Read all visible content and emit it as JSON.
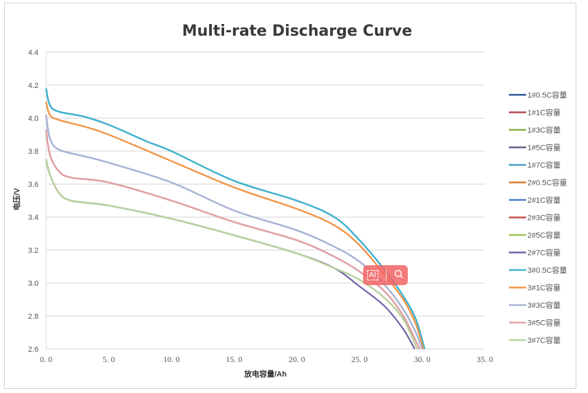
{
  "chart_data": {
    "type": "line",
    "title": "Multi-rate Discharge Curve",
    "xlabel": "放电容量/Ah",
    "ylabel": "电压/V",
    "xlim": [
      0,
      35
    ],
    "ylim": [
      2.6,
      4.4
    ],
    "xticks": [
      "0.0",
      "5.0",
      "10.0",
      "15.0",
      "20.0",
      "25.0",
      "30.0",
      "35.0"
    ],
    "yticks": [
      "2.6",
      "2.8",
      "3.0",
      "3.2",
      "3.4",
      "3.6",
      "3.8",
      "4.0",
      "4.2",
      "4.4"
    ],
    "grid": "horizontal",
    "legend": "right",
    "series": [
      {
        "name": "1#0.5C容量",
        "color": "#2f5597",
        "x": [
          0,
          0.3,
          1,
          3,
          5,
          8,
          10,
          15,
          20,
          23,
          25,
          27,
          28.5,
          29.5,
          30.2
        ],
        "y": [
          4.18,
          4.08,
          4.04,
          4.01,
          3.96,
          3.86,
          3.8,
          3.62,
          3.5,
          3.4,
          3.26,
          3.08,
          2.92,
          2.78,
          2.6
        ]
      },
      {
        "name": "1#1C容量",
        "color": "#b0474f",
        "x": [
          0,
          0.3,
          1,
          2,
          5,
          10,
          15,
          20,
          23,
          25,
          27,
          28.5,
          29.8
        ],
        "y": [
          3.93,
          3.78,
          3.68,
          3.64,
          3.61,
          3.5,
          3.37,
          3.26,
          3.16,
          3.07,
          2.95,
          2.8,
          2.6
        ]
      },
      {
        "name": "1#3C容量",
        "color": "#8cad46",
        "x": [
          0,
          0.3,
          1,
          2,
          5,
          10,
          15,
          20,
          23,
          25,
          27,
          28.5,
          29.6
        ],
        "y": [
          3.75,
          3.66,
          3.55,
          3.5,
          3.47,
          3.39,
          3.29,
          3.18,
          3.09,
          3.02,
          2.91,
          2.78,
          2.6
        ]
      },
      {
        "name": "1#5C容量",
        "color": "#6a5a8a",
        "x": [
          0,
          0.3,
          1,
          3,
          5,
          10,
          15,
          20,
          23,
          25,
          27,
          28.5,
          29.5,
          30
        ],
        "y": [
          4.02,
          3.88,
          3.81,
          3.77,
          3.73,
          3.61,
          3.44,
          3.32,
          3.22,
          3.13,
          2.99,
          2.84,
          2.7,
          2.6
        ]
      },
      {
        "name": "1#7C容量",
        "color": "#4a9ec4",
        "x": [
          0,
          0.3,
          1,
          3,
          5,
          8,
          10,
          15,
          20,
          23,
          25,
          27,
          28.5,
          29.5,
          30.2
        ],
        "y": [
          4.18,
          4.08,
          4.04,
          4.01,
          3.96,
          3.86,
          3.8,
          3.62,
          3.5,
          3.4,
          3.26,
          3.08,
          2.92,
          2.78,
          2.6
        ]
      },
      {
        "name": "2#0.5C容量",
        "color": "#e07b30",
        "x": [
          0,
          0.3,
          1,
          3,
          5,
          10,
          15,
          20,
          23,
          25,
          27,
          28.5,
          29.5,
          30.1
        ],
        "y": [
          4.1,
          4.02,
          3.99,
          3.95,
          3.9,
          3.74,
          3.58,
          3.45,
          3.35,
          3.23,
          3.05,
          2.9,
          2.75,
          2.6
        ]
      },
      {
        "name": "2#1C容量",
        "color": "#4a7fc8",
        "x": [
          0,
          0.3,
          1,
          3,
          5,
          8,
          10,
          15,
          20,
          23,
          25,
          27,
          28.5,
          29.5,
          30.2
        ],
        "y": [
          4.18,
          4.08,
          4.04,
          4.01,
          3.96,
          3.86,
          3.8,
          3.62,
          3.5,
          3.4,
          3.26,
          3.08,
          2.92,
          2.78,
          2.6
        ]
      },
      {
        "name": "2#3C容量",
        "color": "#c8504f",
        "x": [
          0,
          0.3,
          1,
          2,
          5,
          10,
          15,
          20,
          23,
          25,
          27,
          28.5,
          29.8
        ],
        "y": [
          3.93,
          3.78,
          3.68,
          3.64,
          3.61,
          3.5,
          3.37,
          3.26,
          3.16,
          3.07,
          2.95,
          2.8,
          2.6
        ]
      },
      {
        "name": "2#5C容量",
        "color": "#9cc457",
        "x": [
          0,
          0.3,
          1,
          2,
          5,
          10,
          15,
          20,
          23,
          25,
          27,
          28.5,
          29.6
        ],
        "y": [
          3.75,
          3.66,
          3.55,
          3.5,
          3.47,
          3.39,
          3.29,
          3.18,
          3.09,
          3.02,
          2.91,
          2.78,
          2.6
        ]
      },
      {
        "name": "2#7C容量",
        "color": "#7060a8",
        "x": [
          0,
          0.3,
          1,
          2,
          5,
          10,
          15,
          20,
          23,
          25,
          27,
          28.5,
          29.4
        ],
        "y": [
          3.75,
          3.66,
          3.55,
          3.5,
          3.47,
          3.39,
          3.29,
          3.18,
          3.09,
          2.98,
          2.86,
          2.72,
          2.6
        ]
      },
      {
        "name": "3#0.5C容量",
        "color": "#3fb6cf",
        "x": [
          0,
          0.3,
          1,
          3,
          5,
          8,
          10,
          15,
          20,
          23,
          25,
          27,
          28.5,
          29.5,
          30.2
        ],
        "y": [
          4.18,
          4.08,
          4.04,
          4.01,
          3.96,
          3.86,
          3.8,
          3.62,
          3.5,
          3.4,
          3.26,
          3.08,
          2.92,
          2.78,
          2.6
        ]
      },
      {
        "name": "3#1C容量",
        "color": "#f39545",
        "x": [
          0,
          0.3,
          1,
          3,
          5,
          10,
          15,
          20,
          23,
          25,
          27,
          28.5,
          29.5,
          30.1
        ],
        "y": [
          4.1,
          4.02,
          3.99,
          3.95,
          3.9,
          3.74,
          3.58,
          3.45,
          3.35,
          3.23,
          3.05,
          2.9,
          2.75,
          2.6
        ]
      },
      {
        "name": "3#3C容量",
        "color": "#a7b4d6",
        "x": [
          0,
          0.3,
          1,
          3,
          5,
          10,
          15,
          20,
          23,
          25,
          27,
          28.5,
          29.5,
          30
        ],
        "y": [
          4.02,
          3.88,
          3.81,
          3.77,
          3.73,
          3.61,
          3.44,
          3.32,
          3.22,
          3.13,
          2.99,
          2.84,
          2.7,
          2.6
        ]
      },
      {
        "name": "3#5C容量",
        "color": "#e0a3a8",
        "x": [
          0,
          0.3,
          1,
          2,
          5,
          10,
          15,
          20,
          23,
          25,
          27,
          28.5,
          29.8
        ],
        "y": [
          3.93,
          3.78,
          3.68,
          3.64,
          3.61,
          3.5,
          3.37,
          3.26,
          3.16,
          3.07,
          2.95,
          2.8,
          2.6
        ]
      },
      {
        "name": "3#7C容量",
        "color": "#b9d3a0",
        "x": [
          0,
          0.3,
          1,
          2,
          5,
          10,
          15,
          20,
          23,
          25,
          27,
          28.5,
          29.6
        ],
        "y": [
          3.75,
          3.66,
          3.55,
          3.5,
          3.47,
          3.39,
          3.29,
          3.18,
          3.09,
          3.02,
          2.91,
          2.78,
          2.6
        ]
      }
    ]
  },
  "overlay": {
    "ai_label": "AI",
    "search_icon": "search-icon"
  }
}
